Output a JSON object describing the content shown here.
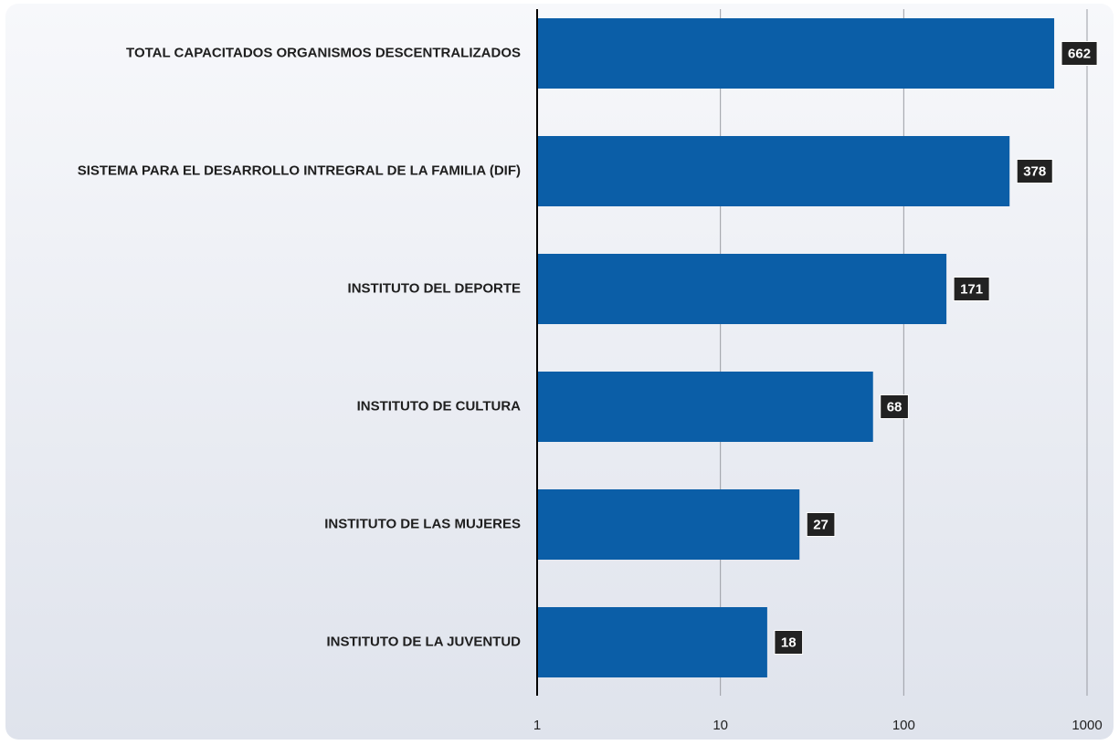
{
  "chart_data": {
    "type": "bar",
    "orientation": "horizontal",
    "categories": [
      "TOTAL CAPACITADOS ORGANISMOS DESCENTRALIZADOS",
      "SISTEMA PARA EL DESARROLLO INTREGRAL DE LA FAMILIA (DIF)",
      "INSTITUTO DEL DEPORTE",
      "INSTITUTO DE CULTURA",
      "INSTITUTO DE LAS MUJERES",
      "INSTITUTO DE LA JUVENTUD"
    ],
    "values": [
      662,
      378,
      171,
      68,
      27,
      18
    ],
    "color": "#0b5ea7",
    "xlim": [
      1,
      1000
    ],
    "xticks": [
      1,
      10,
      100,
      1000
    ],
    "xscale": "log",
    "grid": true
  }
}
